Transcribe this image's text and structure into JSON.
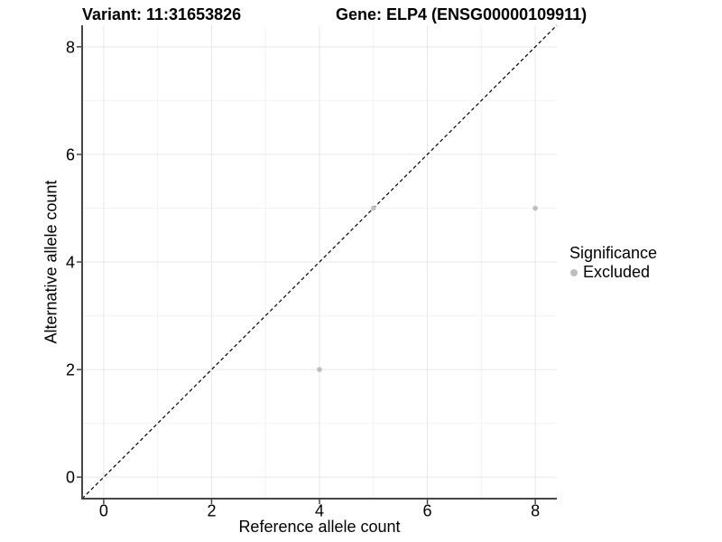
{
  "chart_data": {
    "type": "scatter",
    "titles": {
      "left": "Variant: 11:31653826",
      "right": "Gene: ELP4 (ENSG00000109911)"
    },
    "xlabel": "Reference allele count",
    "ylabel": "Alternative allele count",
    "xlim": [
      -0.4,
      8.4
    ],
    "ylim": [
      -0.4,
      8.4
    ],
    "xticks": [
      0,
      2,
      4,
      6,
      8
    ],
    "yticks": [
      0,
      2,
      4,
      6,
      8
    ],
    "minor_ticks": [
      1,
      3,
      5,
      7
    ],
    "grid": true,
    "points": [
      {
        "x": 4,
        "y": 2,
        "significance": "Excluded"
      },
      {
        "x": 5,
        "y": 5,
        "significance": "Excluded"
      },
      {
        "x": 8,
        "y": 5,
        "significance": "Excluded"
      }
    ],
    "point_color": "#bebebe",
    "reference_line": {
      "type": "identity",
      "slope": 1,
      "intercept": 0,
      "style": "dashed",
      "color": "#000000"
    },
    "legend": {
      "title": "Significance",
      "position": "right",
      "items": [
        {
          "label": "Excluded",
          "color": "#bebebe"
        }
      ]
    }
  }
}
